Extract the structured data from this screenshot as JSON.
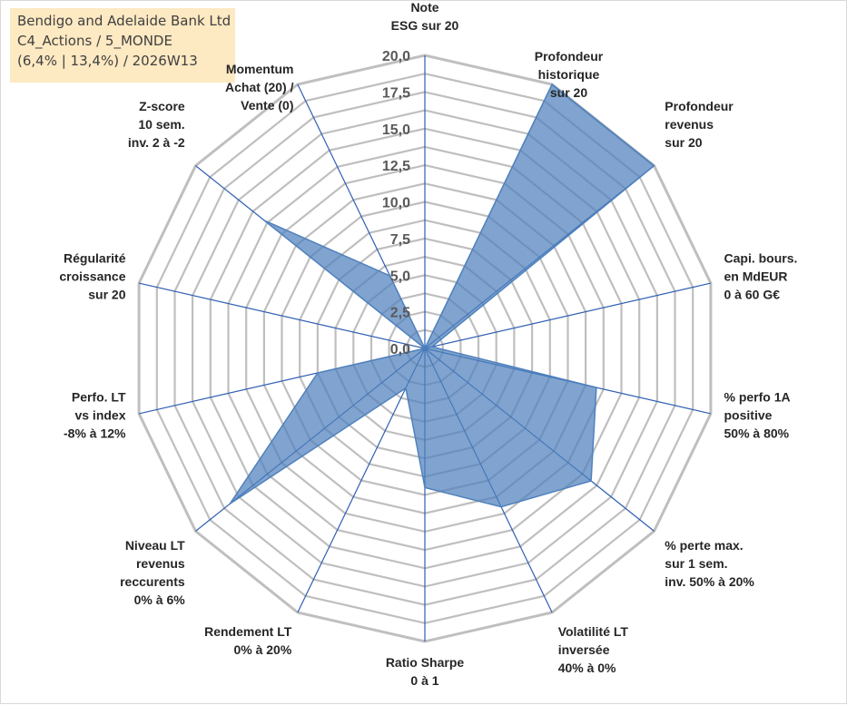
{
  "info_box": {
    "line1": "Bendigo and Adelaide Bank Ltd",
    "line2": "C4_Actions / 5_MONDE",
    "line3": "(6,4% | 13,4%) / 2026W13"
  },
  "chart_data": {
    "type": "radar",
    "rlim": [
      0,
      20
    ],
    "tick_values": [
      0,
      2.5,
      5,
      7.5,
      10,
      12.5,
      15,
      17.5,
      20
    ],
    "tick_labels": [
      "0,0",
      "2,5",
      "5,0",
      "7,5",
      "10,0",
      "12,5",
      "15,0",
      "17,5",
      "20,0"
    ],
    "axes": [
      {
        "lines": [
          "Note",
          "ESG sur 20"
        ]
      },
      {
        "lines": [
          "Profondeur",
          "historique",
          "sur 20"
        ]
      },
      {
        "lines": [
          "Profondeur",
          "revenus",
          "sur 20"
        ]
      },
      {
        "lines": [
          "Capi. bours.",
          "en MdEUR",
          "0 à 60 G€"
        ]
      },
      {
        "lines": [
          "% perfo 1A",
          "positive",
          "50% à 80%"
        ]
      },
      {
        "lines": [
          "% perte max.",
          "sur 1 sem.",
          "inv. 50% à 20%"
        ]
      },
      {
        "lines": [
          "Volatilité LT",
          "inversée",
          "40% à 0%"
        ]
      },
      {
        "lines": [
          "Ratio Sharpe",
          "0 à 1"
        ]
      },
      {
        "lines": [
          "Rendement LT",
          "0% à 20%"
        ]
      },
      {
        "lines": [
          "Niveau LT",
          "revenus",
          "reccurents",
          "0% à 6%"
        ]
      },
      {
        "lines": [
          "Perfo. LT",
          "vs index",
          "-8% à 12%"
        ]
      },
      {
        "lines": [
          "Régularité",
          "croissance",
          "sur 20"
        ]
      },
      {
        "lines": [
          "Z-score",
          "10 sem.",
          "inv. 2 à -2"
        ]
      },
      {
        "lines": [
          "Momentum",
          "Achat (20) /",
          "Vente (0)"
        ]
      }
    ],
    "series": [
      {
        "values": [
          0,
          20,
          20,
          0.5,
          12,
          14.5,
          12,
          9.5,
          3,
          17,
          7.5,
          0,
          14,
          5.5
        ],
        "color": "#4f81bd",
        "fill_opacity": 0.72
      }
    ],
    "grid": true,
    "colors": {
      "grid": "#bfbfbf",
      "spoke": "#2f5fb3",
      "series": "#4f81bd"
    }
  }
}
